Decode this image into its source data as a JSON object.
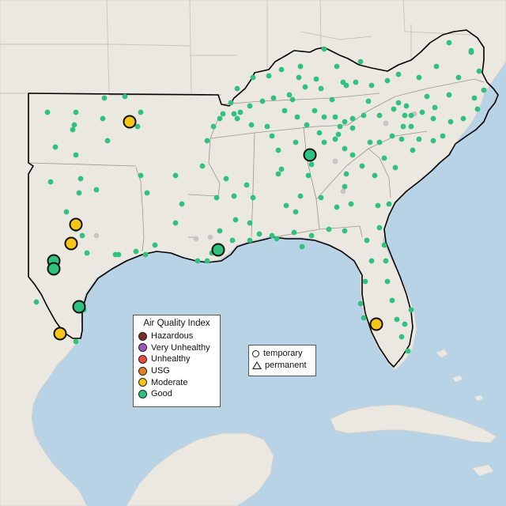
{
  "colors": {
    "water": "#b9d3e6",
    "land": "#ebe7e1",
    "region_outline": "#000000",
    "good": "#2ec27e",
    "moderate": "#f5c518",
    "usg": "#e67e22",
    "unhealthy": "#e74c3c",
    "very_unhealthy": "#9b59b6",
    "hazardous": "#7b2d26",
    "no_data": "#c4c4c4"
  },
  "aqi_legend": {
    "title": "Air Quality Index",
    "items": [
      {
        "label": "Hazardous",
        "color": "#7b2d26"
      },
      {
        "label": "Very Unhealthy",
        "color": "#9b59b6"
      },
      {
        "label": "Unhealthy",
        "color": "#e74c3c"
      },
      {
        "label": "USG",
        "color": "#e67e22"
      },
      {
        "label": "Moderate",
        "color": "#f5c518"
      },
      {
        "label": "Good",
        "color": "#2ec27e"
      }
    ]
  },
  "type_legend": {
    "items": [
      {
        "label": "temporary",
        "shape": "circle-icon"
      },
      {
        "label": "permanent",
        "shape": "triangle-icon"
      }
    ]
  }
}
